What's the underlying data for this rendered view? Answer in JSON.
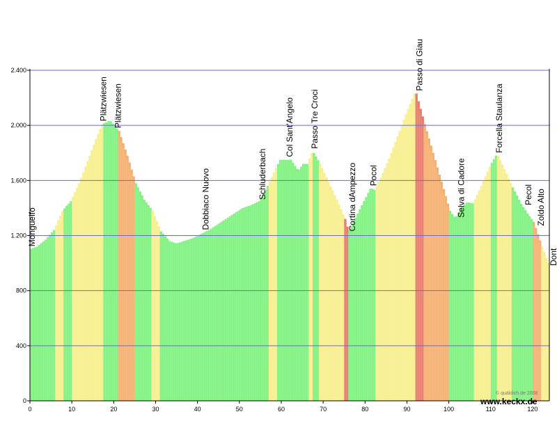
{
  "chart_data": {
    "type": "area",
    "title": "",
    "xlabel": "",
    "ylabel": "",
    "xlim": [
      0,
      124
    ],
    "ylim": [
      0,
      2400
    ],
    "grid": true,
    "x_ticks": [
      0,
      10,
      20,
      30,
      40,
      50,
      60,
      70,
      80,
      90,
      100,
      110,
      120
    ],
    "y_ticks": [
      {
        "value": 0,
        "label": "0"
      },
      {
        "value": 400,
        "label": "400"
      },
      {
        "value": 800,
        "label": "800"
      },
      {
        "value": 1200,
        "label": "1.200"
      },
      {
        "value": 1600,
        "label": "1.600"
      },
      {
        "value": 2000,
        "label": "2.000"
      },
      {
        "value": 2400,
        "label": "2.400"
      }
    ],
    "gradient_colors": {
      "flat": "#7ff27f",
      "moderate": "#f8ef8c",
      "steep": "#f5b070",
      "very_steep": "#e77c6c"
    },
    "profile": [
      {
        "km": 0,
        "elev": 1100
      },
      {
        "km": 2,
        "elev": 1120
      },
      {
        "km": 4,
        "elev": 1170
      },
      {
        "km": 6,
        "elev": 1240
      },
      {
        "km": 8,
        "elev": 1380
      },
      {
        "km": 10,
        "elev": 1450
      },
      {
        "km": 12,
        "elev": 1580
      },
      {
        "km": 14,
        "elev": 1740
      },
      {
        "km": 16,
        "elev": 1900
      },
      {
        "km": 17.5,
        "elev": 2010
      },
      {
        "km": 19,
        "elev": 2030
      },
      {
        "km": 21,
        "elev": 1960
      },
      {
        "km": 23,
        "elev": 1780
      },
      {
        "km": 25,
        "elev": 1580
      },
      {
        "km": 27,
        "elev": 1460
      },
      {
        "km": 29,
        "elev": 1380
      },
      {
        "km": 31,
        "elev": 1230
      },
      {
        "km": 33,
        "elev": 1160
      },
      {
        "km": 35,
        "elev": 1140
      },
      {
        "km": 37,
        "elev": 1160
      },
      {
        "km": 39,
        "elev": 1180
      },
      {
        "km": 41,
        "elev": 1210
      },
      {
        "km": 43,
        "elev": 1240
      },
      {
        "km": 45,
        "elev": 1280
      },
      {
        "km": 47,
        "elev": 1320
      },
      {
        "km": 49,
        "elev": 1360
      },
      {
        "km": 51,
        "elev": 1400
      },
      {
        "km": 53,
        "elev": 1420
      },
      {
        "km": 55,
        "elev": 1450
      },
      {
        "km": 57,
        "elev": 1560
      },
      {
        "km": 59,
        "elev": 1690
      },
      {
        "km": 60,
        "elev": 1750
      },
      {
        "km": 62,
        "elev": 1750
      },
      {
        "km": 64,
        "elev": 1660
      },
      {
        "km": 65.5,
        "elev": 1720
      },
      {
        "km": 66.5,
        "elev": 1720
      },
      {
        "km": 67.5,
        "elev": 1800
      },
      {
        "km": 69,
        "elev": 1720
      },
      {
        "km": 71,
        "elev": 1590
      },
      {
        "km": 73,
        "elev": 1460
      },
      {
        "km": 75,
        "elev": 1320
      },
      {
        "km": 76,
        "elev": 1210
      },
      {
        "km": 78,
        "elev": 1330
      },
      {
        "km": 80,
        "elev": 1450
      },
      {
        "km": 81.5,
        "elev": 1540
      },
      {
        "km": 82.5,
        "elev": 1520
      },
      {
        "km": 84,
        "elev": 1620
      },
      {
        "km": 86,
        "elev": 1760
      },
      {
        "km": 88,
        "elev": 1920
      },
      {
        "km": 90,
        "elev": 2080
      },
      {
        "km": 92,
        "elev": 2230
      },
      {
        "km": 94,
        "elev": 2010
      },
      {
        "km": 96,
        "elev": 1800
      },
      {
        "km": 98,
        "elev": 1590
      },
      {
        "km": 100,
        "elev": 1380
      },
      {
        "km": 101.5,
        "elev": 1310
      },
      {
        "km": 103,
        "elev": 1400
      },
      {
        "km": 104.5,
        "elev": 1440
      },
      {
        "km": 106,
        "elev": 1430
      },
      {
        "km": 108,
        "elev": 1560
      },
      {
        "km": 110,
        "elev": 1700
      },
      {
        "km": 111.5,
        "elev": 1780
      },
      {
        "km": 113,
        "elev": 1680
      },
      {
        "km": 115,
        "elev": 1550
      },
      {
        "km": 117,
        "elev": 1430
      },
      {
        "km": 118.5,
        "elev": 1360
      },
      {
        "km": 120,
        "elev": 1300
      },
      {
        "km": 122,
        "elev": 1120
      },
      {
        "km": 124,
        "elev": 960
      }
    ],
    "waypoints": [
      {
        "name": "Monguelfo",
        "km": 0.5,
        "elev": 1100
      },
      {
        "name": "Plätzwiesen",
        "km": 17.5,
        "elev": 2010
      },
      {
        "name": "Plätzwiesen",
        "km": 21,
        "elev": 1960
      },
      {
        "name": "Dobbiaco Nuovo",
        "km": 42,
        "elev": 1220
      },
      {
        "name": "Schluderbach",
        "km": 55.5,
        "elev": 1440
      },
      {
        "name": "Col Sant'Angelo",
        "km": 62,
        "elev": 1750
      },
      {
        "name": "Passo Tre Croci",
        "km": 68,
        "elev": 1810
      },
      {
        "name": "Cortina dAmpezzo",
        "km": 77,
        "elev": 1210
      },
      {
        "name": "Pocol",
        "km": 82,
        "elev": 1540
      },
      {
        "name": "Passo di Giau",
        "km": 93,
        "elev": 2230
      },
      {
        "name": "Selva di Cadore",
        "km": 103,
        "elev": 1310
      },
      {
        "name": "Forcella Staulanza",
        "km": 112,
        "elev": 1780
      },
      {
        "name": "Pecol",
        "km": 119,
        "elev": 1400
      },
      {
        "name": "Zoldo Alto",
        "km": 122,
        "elev": 1250
      },
      {
        "name": "Dont",
        "km": 125,
        "elev": 960
      }
    ],
    "credit": "© quäldich.de 2008",
    "website": "www.keckx.de"
  }
}
